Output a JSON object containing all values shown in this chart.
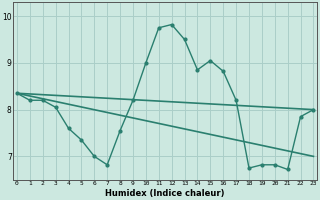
{
  "xlabel": "Humidex (Indice chaleur)",
  "x": [
    0,
    1,
    2,
    3,
    4,
    5,
    6,
    7,
    8,
    9,
    10,
    11,
    12,
    13,
    14,
    15,
    16,
    17,
    18,
    19,
    20,
    21,
    22,
    23
  ],
  "y_curve": [
    8.35,
    8.2,
    8.2,
    8.05,
    7.6,
    7.35,
    7.0,
    6.82,
    7.55,
    8.2,
    9.0,
    9.75,
    9.82,
    9.5,
    8.85,
    9.05,
    8.82,
    8.2,
    6.75,
    6.82,
    6.82,
    6.72,
    7.85,
    8.0
  ],
  "y_line_start": 8.35,
  "y_line_end": 8.0,
  "y_trend_start": 8.35,
  "y_trend_end": 7.0,
  "line_color": "#2a7f6f",
  "bg_color": "#cce8e0",
  "grid_color": "#aacec8",
  "ylim": [
    6.5,
    10.3
  ],
  "yticks": [
    7,
    8,
    9,
    10
  ],
  "xticks": [
    0,
    1,
    2,
    3,
    4,
    5,
    6,
    7,
    8,
    9,
    10,
    11,
    12,
    13,
    14,
    15,
    16,
    17,
    18,
    19,
    20,
    21,
    22,
    23
  ]
}
